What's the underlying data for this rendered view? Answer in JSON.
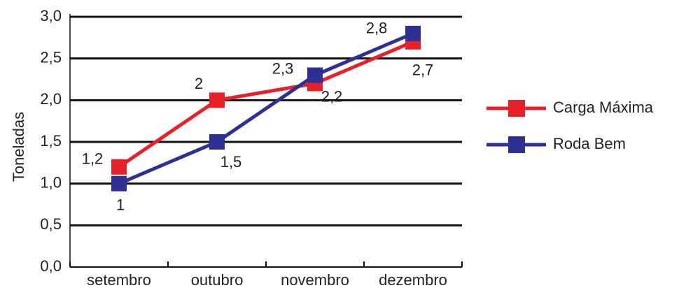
{
  "chart_data": {
    "type": "line",
    "y_label": "Toneladas",
    "categories": [
      "setembro",
      "outubro",
      "novembro",
      "dezembro"
    ],
    "series": [
      {
        "name": "Carga Máxima",
        "color": "#e8202a",
        "values": [
          1.2,
          2,
          2.2,
          2.7
        ],
        "value_labels": [
          "1,2",
          "2",
          "2,2",
          "2,7"
        ]
      },
      {
        "name": "Roda Bem",
        "color": "#2e3192",
        "values": [
          1,
          1.5,
          2.3,
          2.8
        ],
        "value_labels": [
          "1",
          "1,5",
          "2,3",
          "2,8"
        ]
      }
    ],
    "ylim": [
      0,
      3
    ],
    "yticks": [
      {
        "value": 0,
        "label": "0,0"
      },
      {
        "value": 0.5,
        "label": "0,5"
      },
      {
        "value": 1,
        "label": "1,0"
      },
      {
        "value": 1.5,
        "label": "1,5"
      },
      {
        "value": 2,
        "label": "2,0"
      },
      {
        "value": 2.5,
        "label": "2,5"
      },
      {
        "value": 3,
        "label": "3,0"
      }
    ],
    "grid": true,
    "legend": "right"
  }
}
